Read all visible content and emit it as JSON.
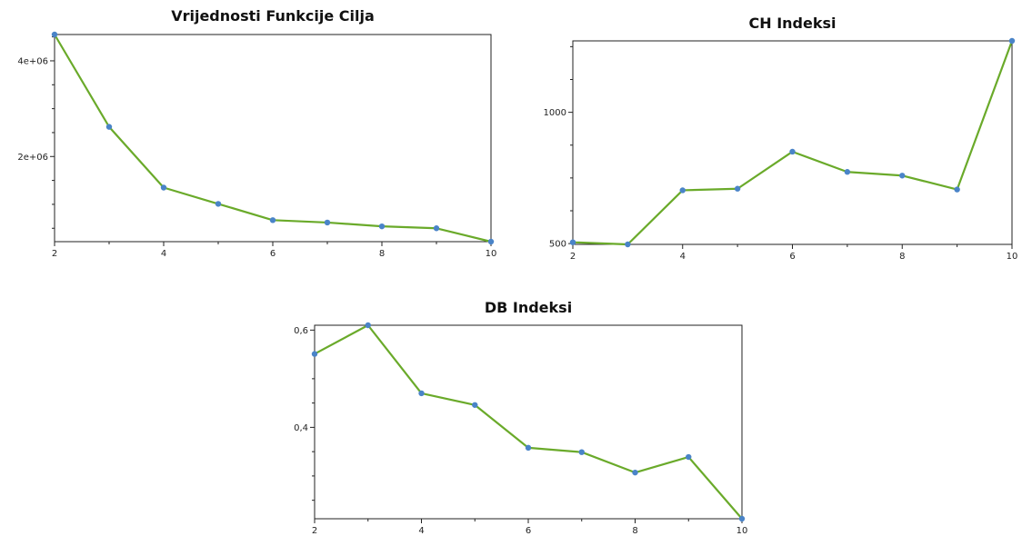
{
  "colors": {
    "line": "#6aaa2a",
    "marker": "#4a84c8",
    "frame": "#222222"
  },
  "chart_data": [
    {
      "type": "line",
      "title": "Vrijednosti Funkcije Cilja",
      "x": [
        2,
        3,
        4,
        5,
        6,
        7,
        8,
        9,
        10
      ],
      "series": [
        {
          "values": [
            4550000,
            2620000,
            1350000,
            1010000,
            670000,
            620000,
            540000,
            500000,
            220000
          ]
        }
      ],
      "xlim": [
        2,
        10
      ],
      "ylim": [
        220000,
        4550000
      ],
      "xticks": [
        {
          "v": 2,
          "label": "2"
        },
        {
          "v": 4,
          "label": "4"
        },
        {
          "v": 6,
          "label": "6"
        },
        {
          "v": 8,
          "label": "8"
        },
        {
          "v": 10,
          "label": "10"
        }
      ],
      "yticks": [
        {
          "v": 2000000,
          "label": "2e+06"
        },
        {
          "v": 4000000,
          "label": "4e+06"
        }
      ],
      "grid": false,
      "legend": false
    },
    {
      "type": "line",
      "title": "CH Indeksi",
      "x": [
        2,
        3,
        4,
        5,
        6,
        7,
        8,
        9,
        10
      ],
      "series": [
        {
          "values": [
            505,
            497,
            703,
            709,
            850,
            773,
            759,
            706,
            1272
          ]
        }
      ],
      "xlim": [
        2,
        10
      ],
      "ylim": [
        497,
        1272
      ],
      "xticks": [
        {
          "v": 2,
          "label": "2"
        },
        {
          "v": 4,
          "label": "4"
        },
        {
          "v": 6,
          "label": "6"
        },
        {
          "v": 8,
          "label": "8"
        },
        {
          "v": 10,
          "label": "10"
        }
      ],
      "yticks": [
        {
          "v": 500,
          "label": "500"
        },
        {
          "v": 1000,
          "label": "1000"
        }
      ],
      "grid": false,
      "legend": false
    },
    {
      "type": "line",
      "title": "DB Indeksi",
      "x": [
        2,
        3,
        4,
        5,
        6,
        7,
        8,
        9,
        10
      ],
      "series": [
        {
          "values": [
            0.551,
            0.61,
            0.47,
            0.446,
            0.358,
            0.349,
            0.307,
            0.339,
            0.212
          ]
        }
      ],
      "xlim": [
        2,
        10
      ],
      "ylim": [
        0.212,
        0.61
      ],
      "xticks": [
        {
          "v": 2,
          "label": "2"
        },
        {
          "v": 4,
          "label": "4"
        },
        {
          "v": 6,
          "label": "6"
        },
        {
          "v": 8,
          "label": "8"
        },
        {
          "v": 10,
          "label": "10"
        }
      ],
      "yticks": [
        {
          "v": 0.4,
          "label": "0,4"
        },
        {
          "v": 0.6,
          "label": "0,6"
        }
      ],
      "grid": false,
      "legend": false
    }
  ]
}
